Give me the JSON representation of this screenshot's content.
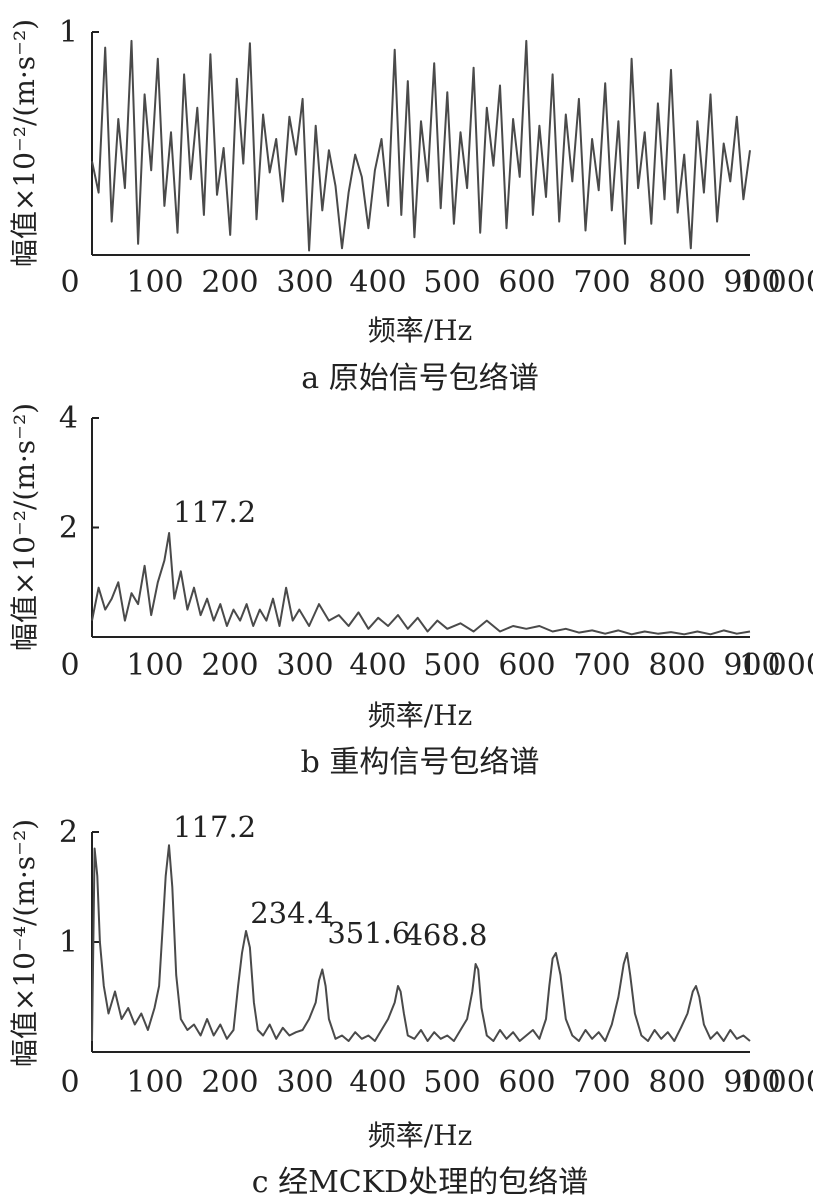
{
  "chart_data": [
    {
      "type": "line",
      "caption": "a 原始信号包络谱",
      "xlabel": "频率/Hz",
      "ylabel": "幅值×10⁻²/(m·s⁻²)",
      "xlim": [
        0,
        1000
      ],
      "ylim": [
        0,
        1
      ],
      "xticks": [
        "0",
        "100",
        "200",
        "300",
        "400",
        "500",
        "600",
        "700",
        "800",
        "900",
        "1 000"
      ],
      "yticks": [
        {
          "value": 1,
          "label": "1"
        }
      ],
      "annotations": [],
      "grid": false,
      "series": [
        {
          "x": [
            0,
            10,
            20,
            30,
            40,
            50,
            60,
            70,
            80,
            90,
            100,
            110,
            120,
            130,
            140,
            150,
            160,
            170,
            180,
            190,
            200,
            210,
            220,
            230,
            240,
            250,
            260,
            270,
            280,
            290,
            300,
            310,
            320,
            330,
            340,
            350,
            360,
            370,
            380,
            390,
            400,
            410,
            420,
            430,
            440,
            450,
            460,
            470,
            480,
            490,
            500,
            510,
            520,
            530,
            540,
            550,
            560,
            570,
            580,
            590,
            600,
            610,
            620,
            630,
            640,
            650,
            660,
            670,
            680,
            690,
            700,
            710,
            720,
            730,
            740,
            750,
            760,
            770,
            780,
            790,
            800,
            810,
            820,
            830,
            840,
            850,
            860,
            870,
            880,
            890,
            900,
            910,
            920,
            930,
            940,
            950,
            960,
            970,
            980,
            990,
            1000
          ],
          "values": [
            0.42,
            0.28,
            0.93,
            0.15,
            0.61,
            0.3,
            0.96,
            0.05,
            0.72,
            0.38,
            0.88,
            0.22,
            0.55,
            0.1,
            0.81,
            0.34,
            0.66,
            0.18,
            0.9,
            0.27,
            0.48,
            0.09,
            0.79,
            0.41,
            0.95,
            0.16,
            0.63,
            0.37,
            0.52,
            0.24,
            0.62,
            0.45,
            0.7,
            0.02,
            0.58,
            0.2,
            0.47,
            0.31,
            0.03,
            0.28,
            0.45,
            0.35,
            0.12,
            0.38,
            0.52,
            0.22,
            0.92,
            0.18,
            0.78,
            0.08,
            0.6,
            0.33,
            0.86,
            0.21,
            0.73,
            0.14,
            0.55,
            0.3,
            0.84,
            0.1,
            0.66,
            0.4,
            0.76,
            0.12,
            0.61,
            0.35,
            0.96,
            0.18,
            0.58,
            0.26,
            0.81,
            0.15,
            0.63,
            0.33,
            0.7,
            0.11,
            0.52,
            0.29,
            0.77,
            0.2,
            0.6,
            0.05,
            0.88,
            0.3,
            0.55,
            0.14,
            0.68,
            0.25,
            0.83,
            0.19,
            0.45,
            0.03,
            0.6,
            0.28,
            0.72,
            0.15,
            0.5,
            0.33,
            0.62,
            0.25,
            0.47
          ]
        }
      ]
    },
    {
      "type": "line",
      "caption": "b 重构信号包络谱",
      "xlabel": "频率/Hz",
      "ylabel": "幅值×10⁻²/(m·s⁻²)",
      "xlim": [
        0,
        1000
      ],
      "ylim": [
        0,
        4
      ],
      "xticks": [
        "0",
        "100",
        "200",
        "300",
        "400",
        "500",
        "600",
        "700",
        "800",
        "900",
        "1 000"
      ],
      "yticks": [
        {
          "value": 2,
          "label": "2"
        },
        {
          "value": 4,
          "label": "4"
        }
      ],
      "annotations": [
        {
          "x": 117.2,
          "y": 1.95,
          "text": "117.2"
        }
      ],
      "grid": false,
      "series": [
        {
          "x": [
            0,
            10,
            20,
            30,
            40,
            50,
            60,
            70,
            80,
            90,
            100,
            110,
            117.2,
            125,
            135,
            145,
            155,
            165,
            175,
            185,
            195,
            205,
            215,
            225,
            235,
            245,
            255,
            265,
            275,
            285,
            295,
            305,
            315,
            330,
            345,
            360,
            375,
            390,
            405,
            420,
            435,
            450,
            465,
            480,
            495,
            510,
            525,
            540,
            560,
            580,
            600,
            620,
            640,
            660,
            680,
            700,
            720,
            740,
            760,
            780,
            800,
            820,
            840,
            860,
            880,
            900,
            920,
            940,
            960,
            980,
            1000
          ],
          "values": [
            0.3,
            0.9,
            0.5,
            0.7,
            1.0,
            0.3,
            0.8,
            0.6,
            1.3,
            0.4,
            1.0,
            1.4,
            1.9,
            0.7,
            1.2,
            0.5,
            0.9,
            0.4,
            0.7,
            0.3,
            0.6,
            0.2,
            0.5,
            0.3,
            0.6,
            0.2,
            0.5,
            0.3,
            0.7,
            0.2,
            0.9,
            0.3,
            0.5,
            0.2,
            0.6,
            0.3,
            0.4,
            0.2,
            0.45,
            0.15,
            0.35,
            0.2,
            0.4,
            0.15,
            0.35,
            0.1,
            0.3,
            0.15,
            0.25,
            0.1,
            0.3,
            0.1,
            0.2,
            0.15,
            0.2,
            0.1,
            0.15,
            0.08,
            0.12,
            0.06,
            0.12,
            0.05,
            0.1,
            0.06,
            0.09,
            0.05,
            0.1,
            0.05,
            0.12,
            0.06,
            0.1
          ]
        }
      ]
    },
    {
      "type": "line",
      "caption": "c 经MCKD处理的包络谱",
      "xlabel": "频率/Hz",
      "ylabel": "幅值×10⁻⁴/(m·s⁻²)",
      "xlim": [
        0,
        1000
      ],
      "ylim": [
        0,
        2
      ],
      "xticks": [
        "0",
        "100",
        "200",
        "300",
        "400",
        "500",
        "600",
        "700",
        "800",
        "900",
        "1 000"
      ],
      "yticks": [
        {
          "value": 1,
          "label": "1"
        },
        {
          "value": 2,
          "label": "2"
        }
      ],
      "annotations": [
        {
          "x": 117.2,
          "y": 1.88,
          "text": "117.2"
        },
        {
          "x": 234.4,
          "y": 1.1,
          "text": "234.4"
        },
        {
          "x": 351.6,
          "y": 0.92,
          "text": "351.6"
        },
        {
          "x": 468.8,
          "y": 0.9,
          "text": "468.8"
        }
      ],
      "grid": false,
      "series": [
        {
          "x": [
            0,
            4,
            8,
            12,
            18,
            25,
            35,
            45,
            55,
            65,
            75,
            85,
            95,
            102,
            108,
            112,
            117,
            122,
            128,
            135,
            145,
            155,
            165,
            175,
            185,
            195,
            205,
            215,
            222,
            228,
            234,
            240,
            246,
            252,
            260,
            270,
            280,
            290,
            300,
            310,
            320,
            330,
            340,
            345,
            350,
            355,
            360,
            370,
            380,
            390,
            400,
            410,
            420,
            430,
            440,
            450,
            460,
            465,
            469,
            474,
            480,
            490,
            500,
            510,
            520,
            530,
            540,
            550,
            560,
            570,
            578,
            583,
            587,
            592,
            600,
            610,
            620,
            630,
            640,
            650,
            660,
            670,
            680,
            690,
            695,
            700,
            705,
            712,
            720,
            730,
            740,
            750,
            760,
            770,
            780,
            790,
            800,
            808,
            813,
            818,
            825,
            835,
            845,
            855,
            865,
            875,
            885,
            895,
            905,
            913,
            918,
            923,
            930,
            940,
            950,
            960,
            970,
            980,
            990,
            1000
          ],
          "values": [
            0.1,
            1.85,
            1.6,
            1.0,
            0.6,
            0.35,
            0.55,
            0.3,
            0.4,
            0.25,
            0.35,
            0.2,
            0.4,
            0.6,
            1.2,
            1.6,
            1.88,
            1.5,
            0.7,
            0.3,
            0.2,
            0.25,
            0.15,
            0.3,
            0.15,
            0.25,
            0.12,
            0.2,
            0.6,
            0.9,
            1.1,
            0.95,
            0.45,
            0.2,
            0.15,
            0.25,
            0.12,
            0.22,
            0.15,
            0.18,
            0.2,
            0.3,
            0.45,
            0.65,
            0.75,
            0.6,
            0.3,
            0.12,
            0.15,
            0.1,
            0.18,
            0.12,
            0.15,
            0.1,
            0.2,
            0.3,
            0.45,
            0.6,
            0.55,
            0.35,
            0.15,
            0.12,
            0.2,
            0.1,
            0.18,
            0.12,
            0.15,
            0.1,
            0.2,
            0.3,
            0.55,
            0.8,
            0.75,
            0.4,
            0.15,
            0.1,
            0.2,
            0.12,
            0.18,
            0.1,
            0.15,
            0.2,
            0.12,
            0.3,
            0.6,
            0.85,
            0.9,
            0.7,
            0.3,
            0.15,
            0.1,
            0.2,
            0.12,
            0.18,
            0.1,
            0.25,
            0.5,
            0.8,
            0.9,
            0.7,
            0.35,
            0.15,
            0.1,
            0.2,
            0.12,
            0.18,
            0.1,
            0.22,
            0.35,
            0.55,
            0.6,
            0.5,
            0.25,
            0.12,
            0.18,
            0.1,
            0.2,
            0.12,
            0.15,
            0.1
          ]
        }
      ]
    }
  ]
}
